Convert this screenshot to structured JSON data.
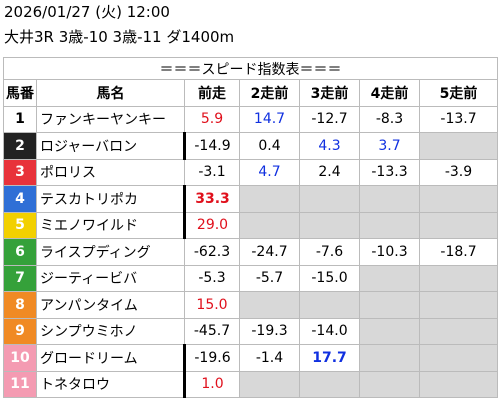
{
  "header": {
    "datetime": "2026/01/27 (火) 12:00",
    "race": "大井3R 3歳-10 3歳-11 ダ1400m"
  },
  "table": {
    "title": "＝＝＝スピード指数表＝＝＝",
    "columns": [
      "馬番",
      "馬名",
      "前走",
      "2走前",
      "3走前",
      "4走前",
      "5走前"
    ],
    "rows": [
      {
        "num": "1",
        "name": "ファンキーヤンキー",
        "runs": [
          "5.9",
          "14.7",
          "-12.7",
          "-8.3",
          "-13.7"
        ]
      },
      {
        "num": "2",
        "name": "ロジャーバロン",
        "runs": [
          "-14.9",
          "0.4",
          "4.3",
          "3.7"
        ]
      },
      {
        "num": "3",
        "name": "ポロリス",
        "runs": [
          "-3.1",
          "4.7",
          "2.4",
          "-13.3",
          "-3.9"
        ]
      },
      {
        "num": "4",
        "name": "テスカトリポカ",
        "runs": [
          "33.3"
        ]
      },
      {
        "num": "5",
        "name": "ミエノワイルド",
        "runs": [
          "29.0"
        ]
      },
      {
        "num": "6",
        "name": "ライスプディング",
        "runs": [
          "-62.3",
          "-24.7",
          "-7.6",
          "-10.3",
          "-18.7"
        ]
      },
      {
        "num": "7",
        "name": "ジーティービバ",
        "runs": [
          "-5.3",
          "-5.7",
          "-15.0"
        ]
      },
      {
        "num": "8",
        "name": "アンパンタイム",
        "runs": [
          "15.0"
        ]
      },
      {
        "num": "9",
        "name": "シンプウミホノ",
        "runs": [
          "-45.7",
          "-19.3",
          "-14.0"
        ]
      },
      {
        "num": "10",
        "name": "グロードリーム",
        "runs": [
          "-19.6",
          "-1.4",
          "17.7"
        ]
      },
      {
        "num": "11",
        "name": "トネタロウ",
        "runs": [
          "1.0"
        ]
      }
    ]
  }
}
